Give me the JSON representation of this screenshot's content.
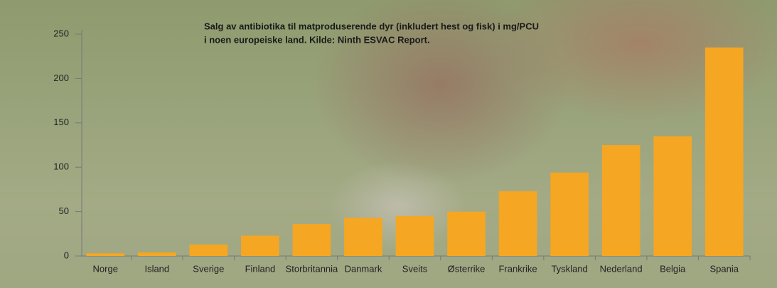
{
  "chart_data": {
    "type": "bar",
    "title": [
      "Salg av antibiotika til matproduserende dyr (inkludert hest og fisk) i mg/PCU",
      "i noen europeiske land. Kilde: Ninth ESVAC Report."
    ],
    "categories": [
      "Norge",
      "Island",
      "Sverige",
      "Finland",
      "Storbritannia",
      "Danmark",
      "Sveits",
      "Østerrike",
      "Frankrike",
      "Tyskland",
      "Nederland",
      "Belgia",
      "Spania"
    ],
    "values": [
      3,
      4,
      13,
      23,
      36,
      43,
      45,
      50,
      73,
      94,
      125,
      135,
      235
    ],
    "color": "#f5a623",
    "ylim": [
      0,
      250
    ],
    "yticks": [
      0,
      50,
      100,
      150,
      200,
      250
    ],
    "grid": false
  }
}
